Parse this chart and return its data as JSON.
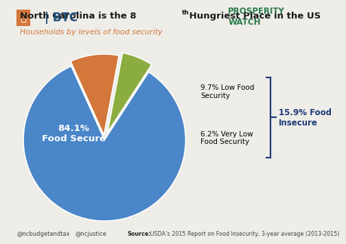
{
  "title_line1": "North Carolina is the 8",
  "title_superscript": "th",
  "title_line1_rest": " Hungriest Place in the US",
  "subtitle": "Households by levels of food security",
  "slices": [
    84.1,
    9.7,
    6.2
  ],
  "slice_colors": [
    "#4A86C8",
    "#D4773A",
    "#8BAD3F"
  ],
  "label_food_secure": "84.1%\nFood Secure",
  "label_low": "9.7% Low Food\nSecurity",
  "label_vlow": "6.2% Very Low\nFood Security",
  "insecure_label": "15.9% Food\nInsecure",
  "footer_left1": "@ncbudgetandtax",
  "footer_left2": "@ncjustice",
  "footer_source_bold": "Source:",
  "footer_source_rest": " USDA’s 2015 Report on Food Insecurity, 3-year average (2013-2015)",
  "background_color": "#EEEDE8",
  "title_color": "#1A1A1A",
  "subtitle_color": "#D4773A",
  "insecure_bracket_color": "#1F3A7A",
  "btc_text_color": "#1F4E79",
  "btc_icon_color": "#D4773A",
  "prosperity_color": "#2B7A4B",
  "startangle": 57,
  "explode": [
    0.0,
    0.06,
    0.1
  ]
}
